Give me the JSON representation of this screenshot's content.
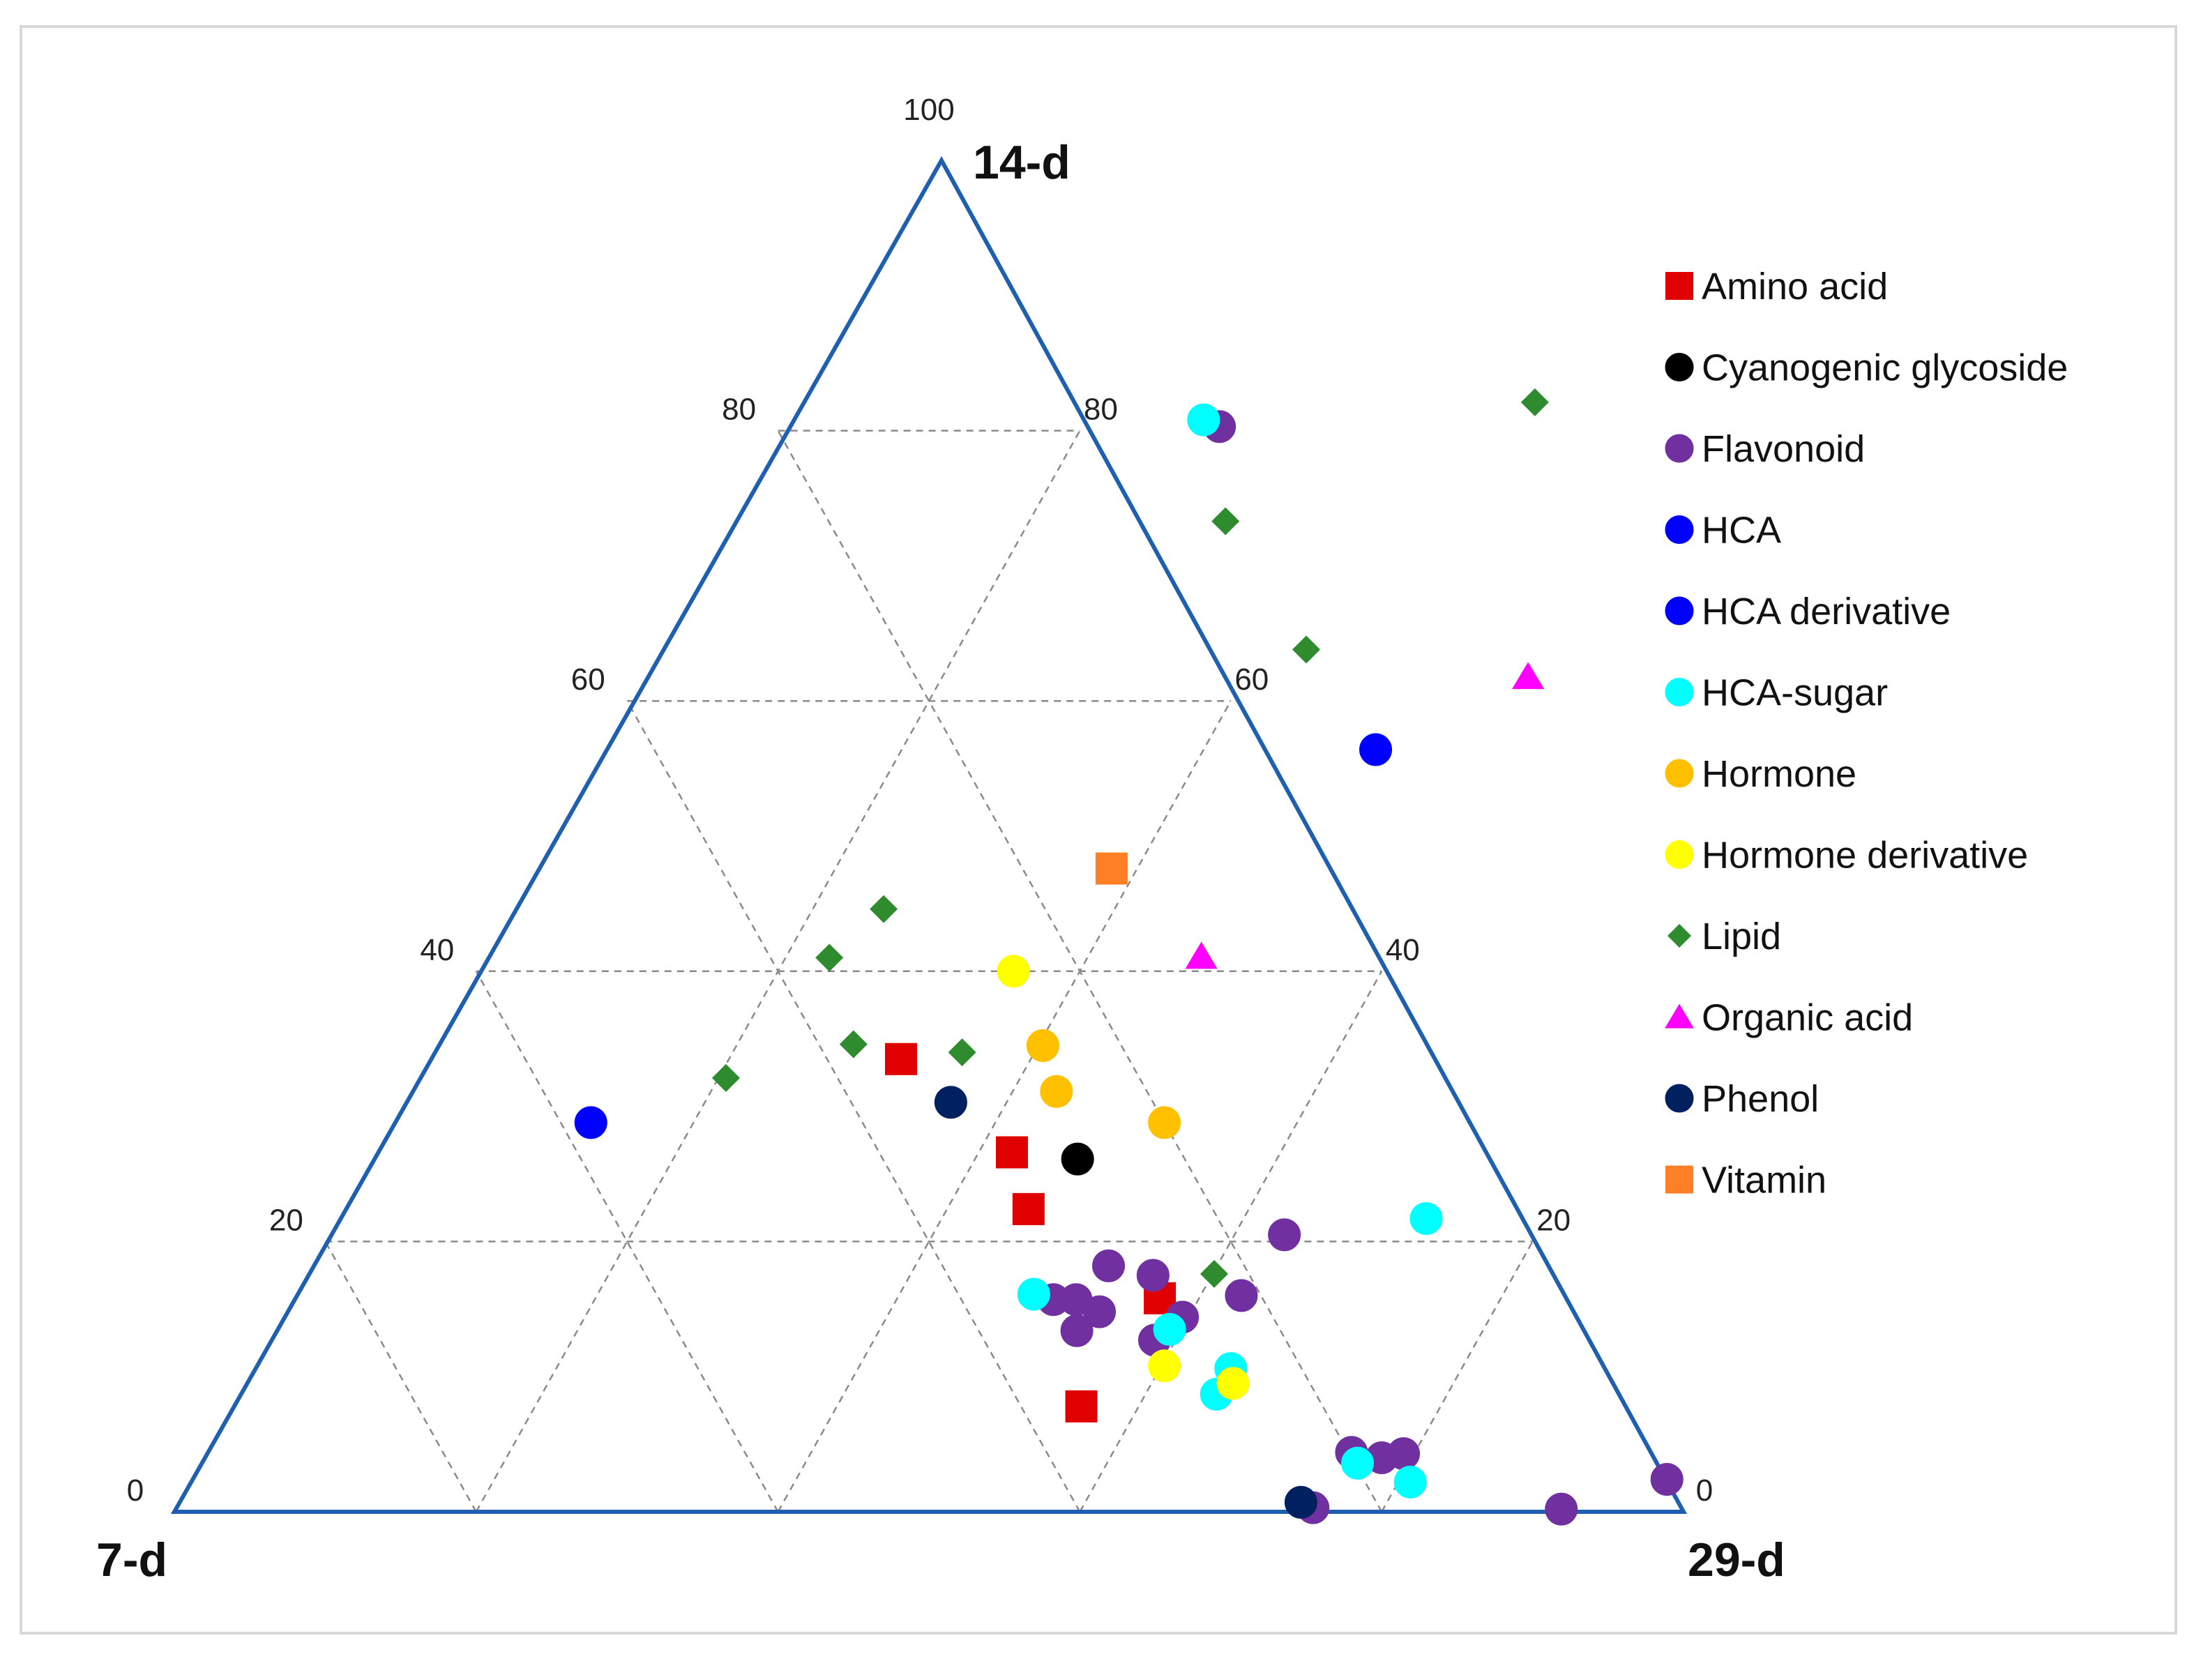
{
  "chart_data": {
    "type": "scatter",
    "subtype": "ternary",
    "title": "",
    "vertices": {
      "top": "14-d",
      "left": "7-d",
      "right": "29-d"
    },
    "ticks": [
      "0",
      "20",
      "40",
      "60",
      "80",
      "100"
    ],
    "grid": true,
    "legend_position": "right",
    "categories": [
      {
        "name": "Amino acid",
        "marker": "square",
        "color": "#e00000"
      },
      {
        "name": "Cyanogenic glycoside",
        "marker": "circle",
        "color": "#000000"
      },
      {
        "name": "Flavonoid",
        "marker": "circle",
        "color": "#7030a0"
      },
      {
        "name": "HCA",
        "marker": "circle",
        "color": "#0000ff"
      },
      {
        "name": "HCA derivative",
        "marker": "circle",
        "color": "#0000ff"
      },
      {
        "name": "HCA-sugar",
        "marker": "circle",
        "color": "#00ffff"
      },
      {
        "name": "Hormone",
        "marker": "circle",
        "color": "#ffc000"
      },
      {
        "name": "Hormone derivative",
        "marker": "circle",
        "color": "#ffff00"
      },
      {
        "name": "Lipid",
        "marker": "diamond",
        "color": "#2e8b2e"
      },
      {
        "name": "Organic acid",
        "marker": "triangle",
        "color": "#ff00ff"
      },
      {
        "name": "Phenol",
        "marker": "circle",
        "color": "#002060"
      },
      {
        "name": "Vitamin",
        "marker": "square",
        "color": "#ff7f27"
      }
    ],
    "note": "Each point: t = % for 14-d (top), r = % for 29-d (right); 7-d share = 100 - t - r",
    "points": [
      {
        "category": "Amino acid",
        "t": 33.5,
        "r": 31.4
      },
      {
        "category": "Amino acid",
        "t": 26.6,
        "r": 42.2
      },
      {
        "category": "Amino acid",
        "t": 22.4,
        "r": 45.4
      },
      {
        "category": "Amino acid",
        "t": 15.8,
        "r": 57.4
      },
      {
        "category": "Amino acid",
        "t": 7.8,
        "r": 56.2
      },
      {
        "category": "Cyanogenic glycoside",
        "t": 26.1,
        "r": 46.8
      },
      {
        "category": "Flavonoid",
        "t": 80.3,
        "r": 29.1
      },
      {
        "category": "Flavonoid",
        "t": 20.5,
        "r": 63.3
      },
      {
        "category": "Flavonoid",
        "t": 18.2,
        "r": 52.8
      },
      {
        "category": "Flavonoid",
        "t": 17.5,
        "r": 56.1
      },
      {
        "category": "Flavonoid",
        "t": 16.0,
        "r": 62.7
      },
      {
        "category": "Flavonoid",
        "t": 15.7,
        "r": 50.4
      },
      {
        "category": "Flavonoid",
        "t": 15.7,
        "r": 51.9
      },
      {
        "category": "Flavonoid",
        "t": 14.8,
        "r": 53.9
      },
      {
        "category": "Flavonoid",
        "t": 14.4,
        "r": 59.6
      },
      {
        "category": "Flavonoid",
        "t": 13.4,
        "r": 53.1
      },
      {
        "category": "Flavonoid",
        "t": 12.7,
        "r": 58.6
      },
      {
        "category": "Flavonoid",
        "t": 4.4,
        "r": 75.8
      },
      {
        "category": "Flavonoid",
        "t": 4.0,
        "r": 78.0
      },
      {
        "category": "Flavonoid",
        "t": 4.3,
        "r": 79.3
      },
      {
        "category": "Flavonoid",
        "t": 0.3,
        "r": 75.3
      },
      {
        "category": "Flavonoid",
        "t": 0.2,
        "r": 91.8
      },
      {
        "category": "Flavonoid",
        "t": 2.4,
        "r": 97.7
      },
      {
        "category": "HCA",
        "t": 56.4,
        "r": 51.4
      },
      {
        "category": "HCA derivative",
        "t": 28.8,
        "r": 13.2
      },
      {
        "category": "HCA-sugar",
        "t": 80.8,
        "r": 27.8
      },
      {
        "category": "HCA-sugar",
        "t": 21.7,
        "r": 72.1
      },
      {
        "category": "HCA-sugar",
        "t": 16.1,
        "r": 48.9
      },
      {
        "category": "HCA-sugar",
        "t": 13.5,
        "r": 59.2
      },
      {
        "category": "HCA-sugar",
        "t": 10.6,
        "r": 64.7
      },
      {
        "category": "HCA-sugar",
        "t": 8.7,
        "r": 64.7
      },
      {
        "category": "HCA-sugar",
        "t": 3.6,
        "r": 76.6
      },
      {
        "category": "HCA-sugar",
        "t": 2.2,
        "r": 80.8
      },
      {
        "category": "Hormone",
        "t": 34.5,
        "r": 40.3
      },
      {
        "category": "Hormone",
        "t": 31.1,
        "r": 42.9
      },
      {
        "category": "Hormone",
        "t": 28.8,
        "r": 51.2
      },
      {
        "category": "Hormone derivative",
        "t": 40.0,
        "r": 35.6
      },
      {
        "category": "Hormone derivative",
        "t": 10.8,
        "r": 60.2
      },
      {
        "category": "Hormone derivative",
        "t": 9.5,
        "r": 65.4
      },
      {
        "category": "Lipid",
        "t": 82.1,
        "r": 49.1
      },
      {
        "category": "Lipid",
        "t": 73.3,
        "r": 33.0
      },
      {
        "category": "Lipid",
        "t": 63.8,
        "r": 43.1
      },
      {
        "category": "Lipid",
        "t": 44.6,
        "r": 24.7
      },
      {
        "category": "Lipid",
        "t": 41.0,
        "r": 22.9
      },
      {
        "category": "Lipid",
        "t": 34.6,
        "r": 27.7
      },
      {
        "category": "Lipid",
        "t": 34.0,
        "r": 35.2
      },
      {
        "category": "Lipid",
        "t": 32.1,
        "r": 20.5
      },
      {
        "category": "Lipid",
        "t": 17.6,
        "r": 60.1
      },
      {
        "category": "Organic acid",
        "t": 61.8,
        "r": 58.8
      },
      {
        "category": "Organic acid",
        "t": 41.1,
        "r": 47.5
      },
      {
        "category": "Phenol",
        "t": 30.3,
        "r": 36.3
      },
      {
        "category": "Phenol",
        "t": 0.7,
        "r": 74.3
      },
      {
        "category": "Vitamin",
        "t": 47.6,
        "r": 38.3
      }
    ]
  }
}
